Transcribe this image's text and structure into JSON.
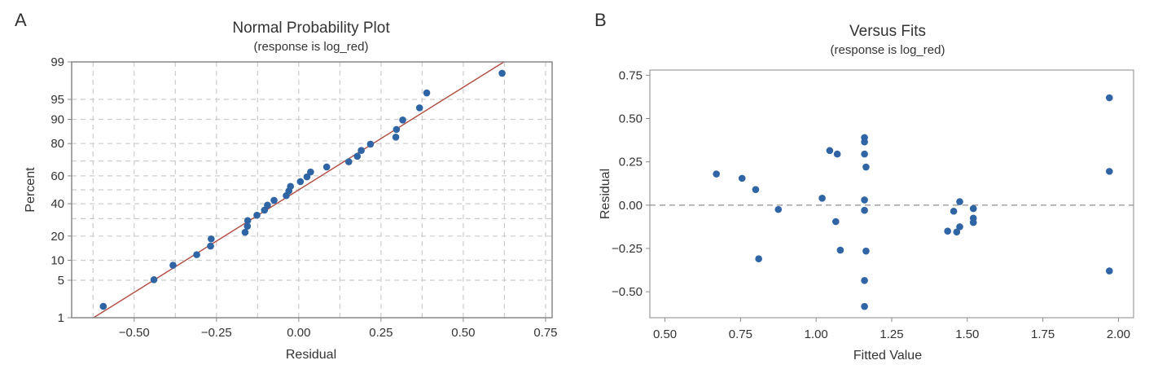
{
  "chart_data": [
    {
      "panel_letter": "A",
      "type": "scatter",
      "title": "Normal Probability Plot",
      "subtitle": "(response is log_red)",
      "xlabel": "Residual",
      "ylabel": "Percent",
      "xlim": [
        -0.69,
        0.77
      ],
      "y_scale": "normal-probability",
      "ylim": [
        1,
        99
      ],
      "x_ticks": [
        -0.5,
        -0.25,
        0.0,
        0.25,
        0.5,
        0.75
      ],
      "x_tick_labels": [
        "−0.50",
        "−0.25",
        "0.00",
        "0.25",
        "0.50",
        "0.75"
      ],
      "y_ticks": [
        1,
        5,
        10,
        20,
        40,
        60,
        80,
        90,
        95,
        99
      ],
      "y_tick_labels": [
        "1",
        "5",
        "10",
        "20",
        "40",
        "60",
        "80",
        "90",
        "95",
        "99"
      ],
      "grid": true,
      "grid_color": "#cccccc",
      "point_color": "#2f64a5",
      "fit_line_color": "#b04a3e",
      "fit_line": {
        "mean": 0.0,
        "sd": 0.268
      },
      "points": [
        {
          "x": -0.594,
          "y": 1.7
        },
        {
          "x": -0.44,
          "y": 5.1
        },
        {
          "x": -0.382,
          "y": 8.5
        },
        {
          "x": -0.31,
          "y": 11.9
        },
        {
          "x": -0.268,
          "y": 15.3
        },
        {
          "x": -0.266,
          "y": 18.6
        },
        {
          "x": -0.163,
          "y": 22.0
        },
        {
          "x": -0.156,
          "y": 25.4
        },
        {
          "x": -0.155,
          "y": 28.8
        },
        {
          "x": -0.127,
          "y": 32.2
        },
        {
          "x": -0.104,
          "y": 35.6
        },
        {
          "x": -0.095,
          "y": 39.0
        },
        {
          "x": -0.075,
          "y": 42.4
        },
        {
          "x": -0.038,
          "y": 45.8
        },
        {
          "x": -0.03,
          "y": 49.2
        },
        {
          "x": -0.025,
          "y": 52.5
        },
        {
          "x": 0.005,
          "y": 55.9
        },
        {
          "x": 0.025,
          "y": 59.3
        },
        {
          "x": 0.036,
          "y": 62.7
        },
        {
          "x": 0.085,
          "y": 66.1
        },
        {
          "x": 0.152,
          "y": 69.5
        },
        {
          "x": 0.178,
          "y": 72.9
        },
        {
          "x": 0.19,
          "y": 76.3
        },
        {
          "x": 0.218,
          "y": 79.7
        },
        {
          "x": 0.295,
          "y": 83.1
        },
        {
          "x": 0.297,
          "y": 86.4
        },
        {
          "x": 0.316,
          "y": 89.8
        },
        {
          "x": 0.367,
          "y": 93.2
        },
        {
          "x": 0.389,
          "y": 96.1
        },
        {
          "x": 0.618,
          "y": 98.3
        }
      ]
    },
    {
      "panel_letter": "B",
      "type": "scatter",
      "title": "Versus Fits",
      "subtitle": "(response is log_red)",
      "xlabel": "Fitted Value",
      "ylabel": "Residual",
      "xlim": [
        0.45,
        2.05
      ],
      "ylim": [
        -0.65,
        0.78
      ],
      "x_ticks": [
        0.5,
        0.75,
        1.0,
        1.25,
        1.5,
        1.75,
        2.0
      ],
      "x_tick_labels": [
        "0.50",
        "0.75",
        "1.00",
        "1.25",
        "1.50",
        "1.75",
        "2.00"
      ],
      "y_ticks": [
        -0.5,
        -0.25,
        0.0,
        0.25,
        0.5,
        0.75
      ],
      "y_tick_labels": [
        "−0.50",
        "−0.25",
        "0.00",
        "0.25",
        "0.50",
        "0.75"
      ],
      "grid": false,
      "reference_line": {
        "y": 0.0,
        "style": "dashed",
        "color": "#999999"
      },
      "point_color": "#2f64a5",
      "points": [
        {
          "x": 0.67,
          "y": 0.18
        },
        {
          "x": 0.755,
          "y": 0.155
        },
        {
          "x": 0.8,
          "y": 0.09
        },
        {
          "x": 0.81,
          "y": -0.31
        },
        {
          "x": 0.875,
          "y": -0.025
        },
        {
          "x": 1.02,
          "y": 0.04
        },
        {
          "x": 1.045,
          "y": 0.315
        },
        {
          "x": 1.07,
          "y": 0.295
        },
        {
          "x": 1.065,
          "y": -0.095
        },
        {
          "x": 1.08,
          "y": -0.26
        },
        {
          "x": 1.16,
          "y": 0.39
        },
        {
          "x": 1.16,
          "y": 0.365
        },
        {
          "x": 1.16,
          "y": 0.295
        },
        {
          "x": 1.165,
          "y": 0.22
        },
        {
          "x": 1.16,
          "y": 0.03
        },
        {
          "x": 1.16,
          "y": -0.03
        },
        {
          "x": 1.165,
          "y": -0.265
        },
        {
          "x": 1.16,
          "y": -0.435
        },
        {
          "x": 1.16,
          "y": -0.585
        },
        {
          "x": 1.435,
          "y": -0.15
        },
        {
          "x": 1.455,
          "y": -0.035
        },
        {
          "x": 1.465,
          "y": -0.155
        },
        {
          "x": 1.475,
          "y": 0.02
        },
        {
          "x": 1.475,
          "y": -0.125
        },
        {
          "x": 1.52,
          "y": -0.02
        },
        {
          "x": 1.52,
          "y": -0.075
        },
        {
          "x": 1.52,
          "y": -0.1
        },
        {
          "x": 1.97,
          "y": 0.62
        },
        {
          "x": 1.97,
          "y": 0.195
        },
        {
          "x": 1.97,
          "y": -0.38
        }
      ]
    }
  ]
}
